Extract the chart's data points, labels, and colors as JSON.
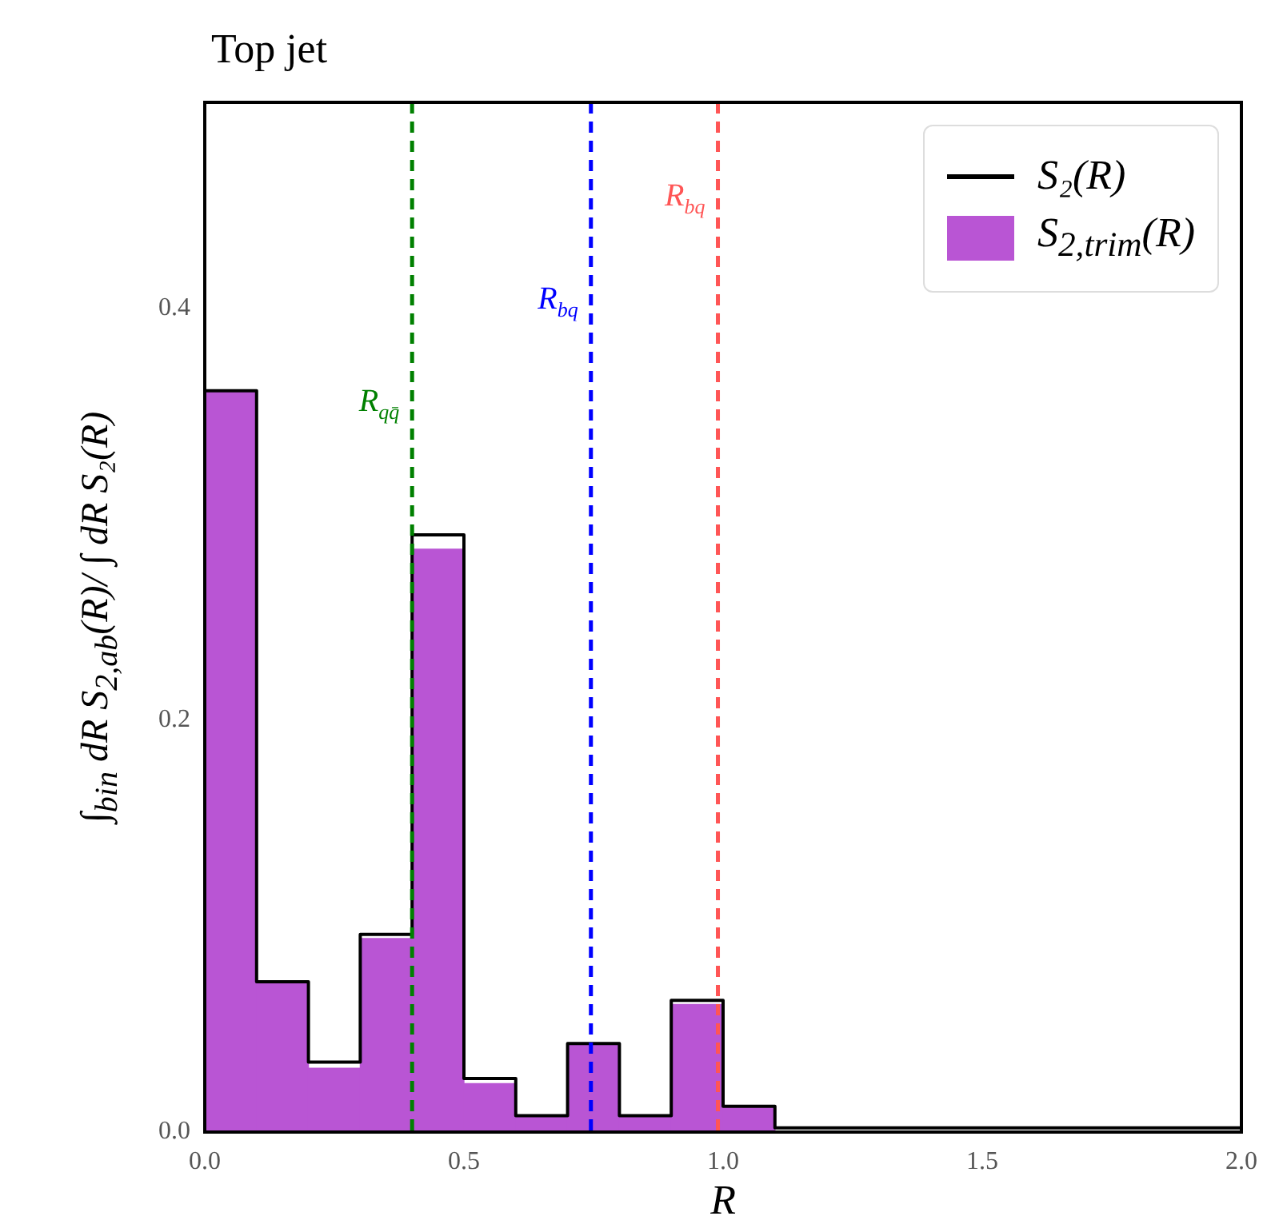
{
  "chart_data": {
    "type": "histogram",
    "title": "Top jet",
    "xlabel": "R",
    "ylabel": "∫$_{bin}$ dR S$_{2,ab}$(R)/ ∫ dR S₂(R)",
    "bins": [
      0,
      0.1,
      0.2,
      0.3,
      0.4,
      0.5,
      0.6,
      0.7,
      0.8,
      0.9,
      1.0,
      1.1,
      1.2,
      1.3,
      1.4,
      1.5,
      1.6,
      1.7,
      1.8,
      1.9,
      2.0
    ],
    "series": [
      {
        "name": "S₂(R)",
        "type": "step",
        "color": "#000000",
        "x": [
          0,
          0.1,
          0.2,
          0.3,
          0.4,
          0.5,
          0.6,
          0.7,
          0.8,
          0.9,
          1.0,
          1.1,
          1.2,
          1.3,
          1.4,
          1.5,
          1.6,
          1.7,
          1.8,
          1.9,
          2.0
        ],
        "values": [
          0.36,
          0.073,
          0.034,
          0.096,
          0.29,
          0.026,
          0.008,
          0.043,
          0.008,
          0.064,
          0.0125,
          0.002,
          0.002,
          0.002,
          0.002,
          0.002,
          0.002,
          0.002,
          0.002,
          0.002,
          0.002
        ]
      },
      {
        "name": "S$_{2,trim}$(R)",
        "color": "#b955d4",
        "values": [
          0.36,
          0.073,
          0.031,
          0.094,
          0.283,
          0.0235,
          0.008,
          0.043,
          0.008,
          0.062,
          0.0125,
          0,
          0,
          0,
          0,
          0,
          0,
          0,
          0,
          0
        ]
      }
    ],
    "xlim": [
      0,
      2
    ],
    "ylim": [
      0,
      0.5
    ],
    "xticks": [
      {
        "value": 0,
        "label": "0.0"
      },
      {
        "value": 0.5,
        "label": "0.5"
      },
      {
        "value": 1,
        "label": "1.0"
      },
      {
        "value": 1.5,
        "label": "1.5"
      },
      {
        "value": 2,
        "label": "2.0"
      }
    ],
    "yticks": [
      {
        "value": 0,
        "label": "0.0"
      },
      {
        "value": 0.2,
        "label": "0.2"
      },
      {
        "value": 0.4,
        "label": "0.4"
      }
    ],
    "legend": "top right",
    "ref_lines": [
      {
        "axis": "x",
        "value": 0.4,
        "label": "R$_{qq̄}$",
        "color": "#008000",
        "line_style": "dashed"
      },
      {
        "axis": "x",
        "value": 0.745,
        "label": "R$_{bq}$",
        "color": "#0000ff",
        "line_style": "dashed"
      },
      {
        "axis": "x",
        "value": 0.99,
        "label": "R$_{bq}$",
        "color": "#ff5555",
        "line_style": "dashed"
      }
    ]
  }
}
